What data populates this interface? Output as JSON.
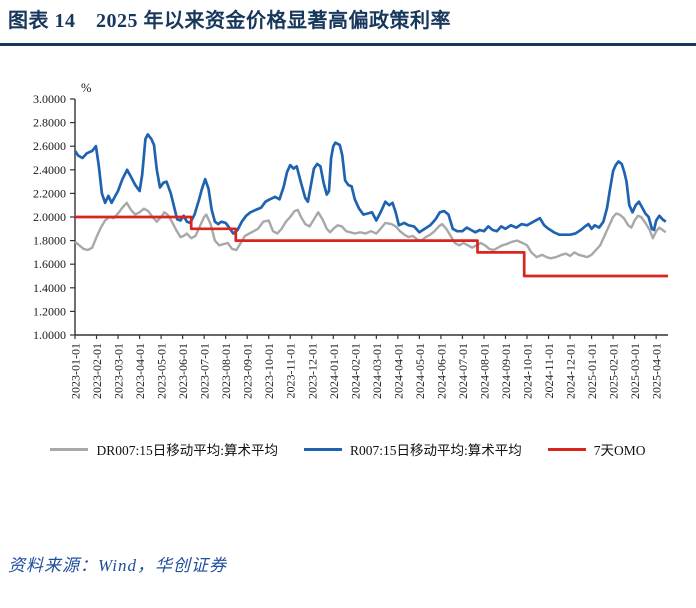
{
  "header": {
    "title": "图表 14　2025 年以来资金价格显著高偏政策利率",
    "accent_color": "#17375d"
  },
  "source": {
    "text": "资料来源：Wind，华创证券"
  },
  "chart_data": {
    "type": "line",
    "title": "图表 14 2025 年以来资金价格显著高偏政策利率",
    "xlabel": "",
    "ylabel": "%",
    "ylim": [
      1.0,
      3.0
    ],
    "ytick_step": 0.2,
    "ytick_decimals": 4,
    "grid": false,
    "legend_position": "bottom",
    "x_unit": "months since 2023-01-01",
    "x_max": 27.55,
    "x_tick_labels": [
      "2023-01-01",
      "2023-02-01",
      "2023-03-01",
      "2023-04-01",
      "2023-05-01",
      "2023-06-01",
      "2023-07-01",
      "2023-08-01",
      "2023-09-01",
      "2023-10-01",
      "2023-11-01",
      "2023-12-01",
      "2024-01-01",
      "2024-02-01",
      "2024-03-01",
      "2024-04-01",
      "2024-05-01",
      "2024-06-01",
      "2024-07-01",
      "2024-08-01",
      "2024-09-01",
      "2024-10-01",
      "2024-11-01",
      "2024-12-01",
      "2025-01-01",
      "2025-02-01",
      "2025-03-01",
      "2025-04-01"
    ],
    "series": [
      {
        "name": "DR007:15日移动平均:算术平均",
        "color": "#a8a8a8",
        "width": 2.4,
        "points": [
          [
            0,
            1.79
          ],
          [
            0.2,
            1.76
          ],
          [
            0.4,
            1.73
          ],
          [
            0.6,
            1.72
          ],
          [
            0.8,
            1.74
          ],
          [
            1.0,
            1.83
          ],
          [
            1.2,
            1.91
          ],
          [
            1.4,
            1.97
          ],
          [
            1.6,
            2.0
          ],
          [
            1.8,
            1.99
          ],
          [
            2.0,
            2.03
          ],
          [
            2.2,
            2.08
          ],
          [
            2.4,
            2.12
          ],
          [
            2.6,
            2.06
          ],
          [
            2.8,
            2.02
          ],
          [
            3.0,
            2.04
          ],
          [
            3.2,
            2.07
          ],
          [
            3.4,
            2.05
          ],
          [
            3.6,
            2.0
          ],
          [
            3.8,
            1.96
          ],
          [
            4.0,
            2.0
          ],
          [
            4.15,
            2.04
          ],
          [
            4.3,
            2.02
          ],
          [
            4.5,
            1.96
          ],
          [
            4.7,
            1.89
          ],
          [
            4.9,
            1.83
          ],
          [
            5.05,
            1.84
          ],
          [
            5.2,
            1.86
          ],
          [
            5.4,
            1.82
          ],
          [
            5.6,
            1.84
          ],
          [
            5.8,
            1.92
          ],
          [
            6.0,
            2.0
          ],
          [
            6.1,
            2.02
          ],
          [
            6.3,
            1.94
          ],
          [
            6.5,
            1.8
          ],
          [
            6.7,
            1.76
          ],
          [
            6.9,
            1.77
          ],
          [
            7.1,
            1.78
          ],
          [
            7.3,
            1.73
          ],
          [
            7.5,
            1.72
          ],
          [
            7.7,
            1.78
          ],
          [
            7.9,
            1.84
          ],
          [
            8.1,
            1.86
          ],
          [
            8.3,
            1.88
          ],
          [
            8.5,
            1.9
          ],
          [
            8.75,
            1.96
          ],
          [
            9.0,
            1.97
          ],
          [
            9.2,
            1.88
          ],
          [
            9.4,
            1.86
          ],
          [
            9.6,
            1.9
          ],
          [
            9.8,
            1.96
          ],
          [
            10.0,
            2.0
          ],
          [
            10.2,
            2.05
          ],
          [
            10.35,
            2.06
          ],
          [
            10.5,
            2.0
          ],
          [
            10.7,
            1.94
          ],
          [
            10.9,
            1.92
          ],
          [
            11.1,
            1.98
          ],
          [
            11.3,
            2.04
          ],
          [
            11.5,
            1.98
          ],
          [
            11.7,
            1.9
          ],
          [
            11.85,
            1.87
          ],
          [
            12.0,
            1.9
          ],
          [
            12.2,
            1.93
          ],
          [
            12.4,
            1.92
          ],
          [
            12.6,
            1.88
          ],
          [
            12.8,
            1.87
          ],
          [
            13.0,
            1.86
          ],
          [
            13.25,
            1.87
          ],
          [
            13.5,
            1.86
          ],
          [
            13.75,
            1.88
          ],
          [
            14.0,
            1.86
          ],
          [
            14.2,
            1.9
          ],
          [
            14.42,
            1.95
          ],
          [
            14.7,
            1.94
          ],
          [
            14.9,
            1.92
          ],
          [
            15.1,
            1.88
          ],
          [
            15.3,
            1.85
          ],
          [
            15.5,
            1.83
          ],
          [
            15.7,
            1.84
          ],
          [
            15.9,
            1.81
          ],
          [
            16.1,
            1.8
          ],
          [
            16.3,
            1.83
          ],
          [
            16.5,
            1.85
          ],
          [
            16.7,
            1.88
          ],
          [
            16.9,
            1.92
          ],
          [
            17.05,
            1.94
          ],
          [
            17.25,
            1.9
          ],
          [
            17.45,
            1.84
          ],
          [
            17.65,
            1.78
          ],
          [
            17.85,
            1.76
          ],
          [
            18.05,
            1.78
          ],
          [
            18.25,
            1.76
          ],
          [
            18.45,
            1.74
          ],
          [
            18.65,
            1.76
          ],
          [
            18.85,
            1.78
          ],
          [
            19.05,
            1.76
          ],
          [
            19.25,
            1.73
          ],
          [
            19.45,
            1.72
          ],
          [
            19.65,
            1.74
          ],
          [
            19.85,
            1.76
          ],
          [
            20.05,
            1.77
          ],
          [
            20.3,
            1.79
          ],
          [
            20.55,
            1.8
          ],
          [
            20.8,
            1.78
          ],
          [
            21.0,
            1.76
          ],
          [
            21.2,
            1.7
          ],
          [
            21.45,
            1.66
          ],
          [
            21.7,
            1.68
          ],
          [
            21.9,
            1.66
          ],
          [
            22.1,
            1.65
          ],
          [
            22.35,
            1.66
          ],
          [
            22.6,
            1.68
          ],
          [
            22.8,
            1.69
          ],
          [
            23.0,
            1.67
          ],
          [
            23.2,
            1.7
          ],
          [
            23.4,
            1.68
          ],
          [
            23.6,
            1.67
          ],
          [
            23.8,
            1.66
          ],
          [
            24.0,
            1.68
          ],
          [
            24.2,
            1.72
          ],
          [
            24.4,
            1.76
          ],
          [
            24.6,
            1.84
          ],
          [
            24.8,
            1.92
          ],
          [
            25.0,
            2.0
          ],
          [
            25.15,
            2.03
          ],
          [
            25.3,
            2.02
          ],
          [
            25.5,
            1.99
          ],
          [
            25.7,
            1.93
          ],
          [
            25.85,
            1.91
          ],
          [
            26.0,
            1.97
          ],
          [
            26.15,
            2.01
          ],
          [
            26.3,
            2.0
          ],
          [
            26.5,
            1.95
          ],
          [
            26.7,
            1.89
          ],
          [
            26.85,
            1.82
          ],
          [
            27.0,
            1.88
          ],
          [
            27.15,
            1.91
          ],
          [
            27.3,
            1.89
          ],
          [
            27.45,
            1.87
          ]
        ]
      },
      {
        "name": "R007:15日移动平均:算术平均",
        "color": "#1f63b0",
        "width": 2.7,
        "points": [
          [
            0,
            2.56
          ],
          [
            0.15,
            2.52
          ],
          [
            0.35,
            2.5
          ],
          [
            0.55,
            2.54
          ],
          [
            0.8,
            2.56
          ],
          [
            0.97,
            2.6
          ],
          [
            1.1,
            2.44
          ],
          [
            1.25,
            2.2
          ],
          [
            1.4,
            2.12
          ],
          [
            1.55,
            2.18
          ],
          [
            1.7,
            2.12
          ],
          [
            1.85,
            2.17
          ],
          [
            2.0,
            2.22
          ],
          [
            2.2,
            2.32
          ],
          [
            2.42,
            2.4
          ],
          [
            2.6,
            2.34
          ],
          [
            2.8,
            2.27
          ],
          [
            3.0,
            2.22
          ],
          [
            3.12,
            2.36
          ],
          [
            3.27,
            2.66
          ],
          [
            3.38,
            2.7
          ],
          [
            3.55,
            2.66
          ],
          [
            3.67,
            2.61
          ],
          [
            3.8,
            2.4
          ],
          [
            3.95,
            2.25
          ],
          [
            4.1,
            2.29
          ],
          [
            4.25,
            2.3
          ],
          [
            4.45,
            2.2
          ],
          [
            4.6,
            2.09
          ],
          [
            4.75,
            1.98
          ],
          [
            4.9,
            1.97
          ],
          [
            5.05,
            2.01
          ],
          [
            5.2,
            1.96
          ],
          [
            5.35,
            1.95
          ],
          [
            5.55,
            2.02
          ],
          [
            5.75,
            2.14
          ],
          [
            5.9,
            2.24
          ],
          [
            6.05,
            2.32
          ],
          [
            6.2,
            2.24
          ],
          [
            6.35,
            2.06
          ],
          [
            6.5,
            1.96
          ],
          [
            6.65,
            1.94
          ],
          [
            6.8,
            1.96
          ],
          [
            7.0,
            1.95
          ],
          [
            7.2,
            1.9
          ],
          [
            7.35,
            1.86
          ],
          [
            7.55,
            1.89
          ],
          [
            7.75,
            1.96
          ],
          [
            7.95,
            2.01
          ],
          [
            8.15,
            2.04
          ],
          [
            8.4,
            2.06
          ],
          [
            8.65,
            2.08
          ],
          [
            8.85,
            2.13
          ],
          [
            9.05,
            2.15
          ],
          [
            9.3,
            2.17
          ],
          [
            9.5,
            2.15
          ],
          [
            9.7,
            2.26
          ],
          [
            9.85,
            2.38
          ],
          [
            10.0,
            2.44
          ],
          [
            10.15,
            2.41
          ],
          [
            10.3,
            2.43
          ],
          [
            10.5,
            2.29
          ],
          [
            10.7,
            2.16
          ],
          [
            10.82,
            2.13
          ],
          [
            10.95,
            2.26
          ],
          [
            11.1,
            2.41
          ],
          [
            11.25,
            2.45
          ],
          [
            11.4,
            2.43
          ],
          [
            11.55,
            2.29
          ],
          [
            11.7,
            2.19
          ],
          [
            11.8,
            2.22
          ],
          [
            11.9,
            2.5
          ],
          [
            12.0,
            2.6
          ],
          [
            12.1,
            2.63
          ],
          [
            12.3,
            2.61
          ],
          [
            12.42,
            2.52
          ],
          [
            12.55,
            2.31
          ],
          [
            12.7,
            2.27
          ],
          [
            12.85,
            2.26
          ],
          [
            13.0,
            2.15
          ],
          [
            13.2,
            2.07
          ],
          [
            13.4,
            2.02
          ],
          [
            13.6,
            2.03
          ],
          [
            13.8,
            2.04
          ],
          [
            14.0,
            1.97
          ],
          [
            14.2,
            2.04
          ],
          [
            14.42,
            2.13
          ],
          [
            14.6,
            2.1
          ],
          [
            14.75,
            2.12
          ],
          [
            14.9,
            2.04
          ],
          [
            15.05,
            1.93
          ],
          [
            15.3,
            1.95
          ],
          [
            15.5,
            1.93
          ],
          [
            15.75,
            1.92
          ],
          [
            16.0,
            1.87
          ],
          [
            16.25,
            1.9
          ],
          [
            16.5,
            1.93
          ],
          [
            16.75,
            1.98
          ],
          [
            16.95,
            2.04
          ],
          [
            17.15,
            2.05
          ],
          [
            17.35,
            2.02
          ],
          [
            17.55,
            1.9
          ],
          [
            17.75,
            1.88
          ],
          [
            18.0,
            1.88
          ],
          [
            18.2,
            1.91
          ],
          [
            18.4,
            1.89
          ],
          [
            18.6,
            1.87
          ],
          [
            18.8,
            1.89
          ],
          [
            19.0,
            1.88
          ],
          [
            19.2,
            1.92
          ],
          [
            19.4,
            1.89
          ],
          [
            19.6,
            1.88
          ],
          [
            19.8,
            1.92
          ],
          [
            20.0,
            1.9
          ],
          [
            20.25,
            1.93
          ],
          [
            20.5,
            1.91
          ],
          [
            20.75,
            1.94
          ],
          [
            21.0,
            1.93
          ],
          [
            21.3,
            1.96
          ],
          [
            21.6,
            1.99
          ],
          [
            21.8,
            1.93
          ],
          [
            22.0,
            1.9
          ],
          [
            22.25,
            1.87
          ],
          [
            22.5,
            1.85
          ],
          [
            22.75,
            1.85
          ],
          [
            23.0,
            1.85
          ],
          [
            23.25,
            1.86
          ],
          [
            23.5,
            1.89
          ],
          [
            23.7,
            1.92
          ],
          [
            23.85,
            1.94
          ],
          [
            24.0,
            1.9
          ],
          [
            24.15,
            1.93
          ],
          [
            24.35,
            1.91
          ],
          [
            24.55,
            1.96
          ],
          [
            24.72,
            2.08
          ],
          [
            24.85,
            2.23
          ],
          [
            25.0,
            2.39
          ],
          [
            25.12,
            2.44
          ],
          [
            25.25,
            2.47
          ],
          [
            25.4,
            2.45
          ],
          [
            25.52,
            2.38
          ],
          [
            25.62,
            2.3
          ],
          [
            25.75,
            2.1
          ],
          [
            25.9,
            2.04
          ],
          [
            26.05,
            2.1
          ],
          [
            26.2,
            2.13
          ],
          [
            26.35,
            2.08
          ],
          [
            26.5,
            2.03
          ],
          [
            26.65,
            2.0
          ],
          [
            26.8,
            1.9
          ],
          [
            26.9,
            1.89
          ],
          [
            27.0,
            1.97
          ],
          [
            27.15,
            2.01
          ],
          [
            27.3,
            1.98
          ],
          [
            27.45,
            1.96
          ]
        ]
      },
      {
        "name": "7天OMO",
        "color": "#d9251d",
        "width": 2.7,
        "points": [
          [
            0,
            2.0
          ],
          [
            5.4,
            2.0
          ],
          [
            5.4,
            1.9
          ],
          [
            7.47,
            1.9
          ],
          [
            7.47,
            1.8
          ],
          [
            18.7,
            1.8
          ],
          [
            18.7,
            1.7
          ],
          [
            20.87,
            1.7
          ],
          [
            20.87,
            1.5
          ],
          [
            27.55,
            1.5
          ]
        ]
      }
    ]
  }
}
